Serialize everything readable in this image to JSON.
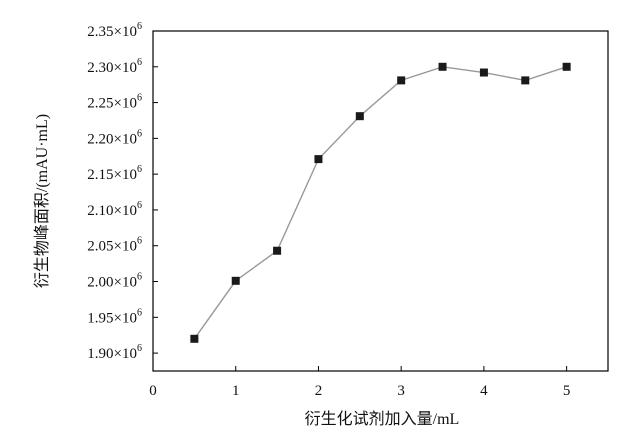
{
  "chart_data": {
    "type": "line",
    "xlabel": "衍生化试剂加入量/mL",
    "ylabel": "衍生物峰面积/(mAU·mL)",
    "xlim": [
      0,
      5.5
    ],
    "ylim": [
      1.875,
      2.35
    ],
    "x_ticks": [
      0,
      1,
      2,
      3,
      4,
      5
    ],
    "y_ticks": [
      {
        "value": 1.9,
        "mantissa": "1.90×10",
        "exp": "6"
      },
      {
        "value": 1.95,
        "mantissa": "1.95×10",
        "exp": "6"
      },
      {
        "value": 2.0,
        "mantissa": "2.00×10",
        "exp": "6"
      },
      {
        "value": 2.05,
        "mantissa": "2.05×10",
        "exp": "6"
      },
      {
        "value": 2.1,
        "mantissa": "2.10×10",
        "exp": "6"
      },
      {
        "value": 2.15,
        "mantissa": "2.15×10",
        "exp": "6"
      },
      {
        "value": 2.2,
        "mantissa": "2.20×10",
        "exp": "6"
      },
      {
        "value": 2.25,
        "mantissa": "2.25×10",
        "exp": "6"
      },
      {
        "value": 2.3,
        "mantissa": "2.30×10",
        "exp": "6"
      },
      {
        "value": 2.35,
        "mantissa": "2.35×10",
        "exp": "6"
      }
    ],
    "y_scale": 1000000,
    "series": [
      {
        "x": [
          0.5,
          1.0,
          1.5,
          2.0,
          2.5,
          3.0,
          3.5,
          4.0,
          4.5,
          5.0
        ],
        "y": [
          1920000,
          2001000,
          2043000,
          2171000,
          2231000,
          2281000,
          2300000,
          2292000,
          2281000,
          2300000
        ],
        "line_color": "#999999",
        "marker_color": "#1a1a1a",
        "marker": "square"
      }
    ],
    "grid": false,
    "legend": "none"
  }
}
